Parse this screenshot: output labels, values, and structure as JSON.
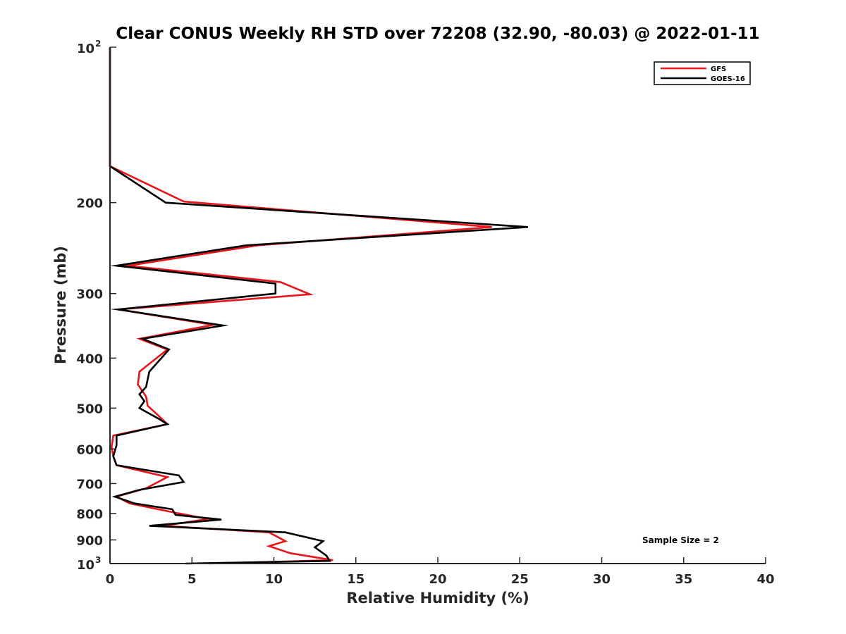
{
  "chart_data": {
    "type": "line",
    "title": "Clear CONUS Weekly RH STD over 72208 (32.90, -80.03) @ 2022-01-11",
    "xlabel": "Relative Humidity (%)",
    "ylabel": "Pressure (mb)",
    "xlim": [
      0,
      40
    ],
    "ylim": [
      100,
      1000
    ],
    "y_scale": "log",
    "y_reversed": true,
    "grid": false,
    "legend_position": "top-right",
    "x_ticks": [
      0,
      5,
      10,
      15,
      20,
      25,
      30,
      35,
      40
    ],
    "y_ticks": [
      {
        "value": 100,
        "base": "10",
        "exp": "2"
      },
      {
        "value": 200,
        "label": "200"
      },
      {
        "value": 300,
        "label": "300"
      },
      {
        "value": 400,
        "label": "400"
      },
      {
        "value": 500,
        "label": "500"
      },
      {
        "value": 600,
        "label": "600"
      },
      {
        "value": 700,
        "label": "700"
      },
      {
        "value": 800,
        "label": "800"
      },
      {
        "value": 900,
        "label": "900"
      },
      {
        "value": 1000,
        "base": "10",
        "exp": "3"
      }
    ],
    "series": [
      {
        "name": "GFS",
        "color": "#e8151b",
        "points": [
          [
            0.0,
            100
          ],
          [
            0.0,
            150
          ],
          [
            0.0,
            170
          ],
          [
            4.5,
            199
          ],
          [
            23.3,
            223
          ],
          [
            9.0,
            242
          ],
          [
            1.1,
            265
          ],
          [
            10.4,
            285
          ],
          [
            12.2,
            301
          ],
          [
            0.5,
            322
          ],
          [
            6.3,
            345
          ],
          [
            1.8,
            367
          ],
          [
            3.5,
            385
          ],
          [
            1.8,
            425
          ],
          [
            1.7,
            450
          ],
          [
            2.2,
            475
          ],
          [
            2.3,
            495
          ],
          [
            2.9,
            515
          ],
          [
            3.5,
            537
          ],
          [
            0.2,
            565
          ],
          [
            0.1,
            595
          ],
          [
            0.2,
            620
          ],
          [
            0.4,
            645
          ],
          [
            3.5,
            680
          ],
          [
            2.2,
            715
          ],
          [
            0.4,
            742
          ],
          [
            1.2,
            765
          ],
          [
            3.8,
            795
          ],
          [
            6.0,
            820
          ],
          [
            3.2,
            845
          ],
          [
            9.7,
            870
          ],
          [
            10.7,
            905
          ],
          [
            9.7,
            925
          ],
          [
            11.0,
            955
          ],
          [
            13.6,
            985
          ],
          [
            6.0,
            1000
          ]
        ]
      },
      {
        "name": "GOES-16",
        "color": "#000000",
        "points": [
          [
            0.0,
            100
          ],
          [
            0.0,
            150
          ],
          [
            0.0,
            170
          ],
          [
            3.4,
            200
          ],
          [
            25.5,
            223
          ],
          [
            8.3,
            242
          ],
          [
            0.4,
            265
          ],
          [
            10.1,
            287
          ],
          [
            10.1,
            300
          ],
          [
            0.5,
            322
          ],
          [
            6.9,
            346
          ],
          [
            2.0,
            367
          ],
          [
            3.6,
            385
          ],
          [
            2.4,
            425
          ],
          [
            2.2,
            455
          ],
          [
            1.8,
            470
          ],
          [
            2.1,
            485
          ],
          [
            1.8,
            500
          ],
          [
            3.0,
            525
          ],
          [
            3.5,
            537
          ],
          [
            0.4,
            565
          ],
          [
            0.4,
            590
          ],
          [
            0.2,
            620
          ],
          [
            0.4,
            645
          ],
          [
            4.2,
            675
          ],
          [
            4.5,
            695
          ],
          [
            1.8,
            720
          ],
          [
            0.3,
            742
          ],
          [
            1.5,
            765
          ],
          [
            3.8,
            785
          ],
          [
            4.0,
            805
          ],
          [
            6.8,
            822
          ],
          [
            2.4,
            845
          ],
          [
            10.7,
            870
          ],
          [
            13.0,
            905
          ],
          [
            12.5,
            930
          ],
          [
            13.2,
            965
          ],
          [
            13.4,
            988
          ],
          [
            4.6,
            1000
          ]
        ]
      }
    ],
    "annotation": "Sample Size = 2"
  }
}
